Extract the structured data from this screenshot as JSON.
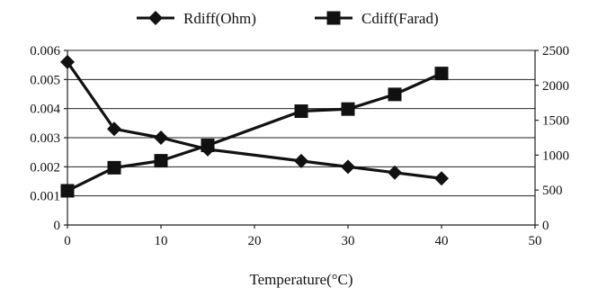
{
  "chart_data": {
    "type": "line",
    "xlabel": "Temperature(°C)",
    "x_ticks": [
      0,
      10,
      20,
      30,
      40,
      50
    ],
    "xlim": [
      0,
      50
    ],
    "y_left": {
      "lim": [
        0,
        0.006
      ],
      "ticks": [
        "0",
        "0.001",
        "0.002",
        "0.003",
        "0.004",
        "0.005",
        "0.006"
      ]
    },
    "y_right": {
      "lim": [
        0,
        2500
      ],
      "ticks": [
        "0",
        "500",
        "1000",
        "1500",
        "2000",
        "2500"
      ]
    },
    "grid": true,
    "legend_position": "top",
    "series": [
      {
        "name": "Rdiff(Ohm)",
        "axis": "left",
        "marker": "diamond",
        "color": "#111111",
        "x": [
          0,
          5,
          10,
          15,
          25,
          30,
          35,
          40
        ],
        "y": [
          0.0056,
          0.0033,
          0.003,
          0.0026,
          0.0022,
          0.002,
          0.0018,
          0.0016
        ]
      },
      {
        "name": "Cdiff(Farad)",
        "axis": "right",
        "marker": "square",
        "color": "#111111",
        "x": [
          0,
          5,
          10,
          15,
          25,
          30,
          35,
          40
        ],
        "y": [
          490,
          820,
          920,
          1140,
          1630,
          1660,
          1870,
          2170
        ]
      }
    ]
  }
}
